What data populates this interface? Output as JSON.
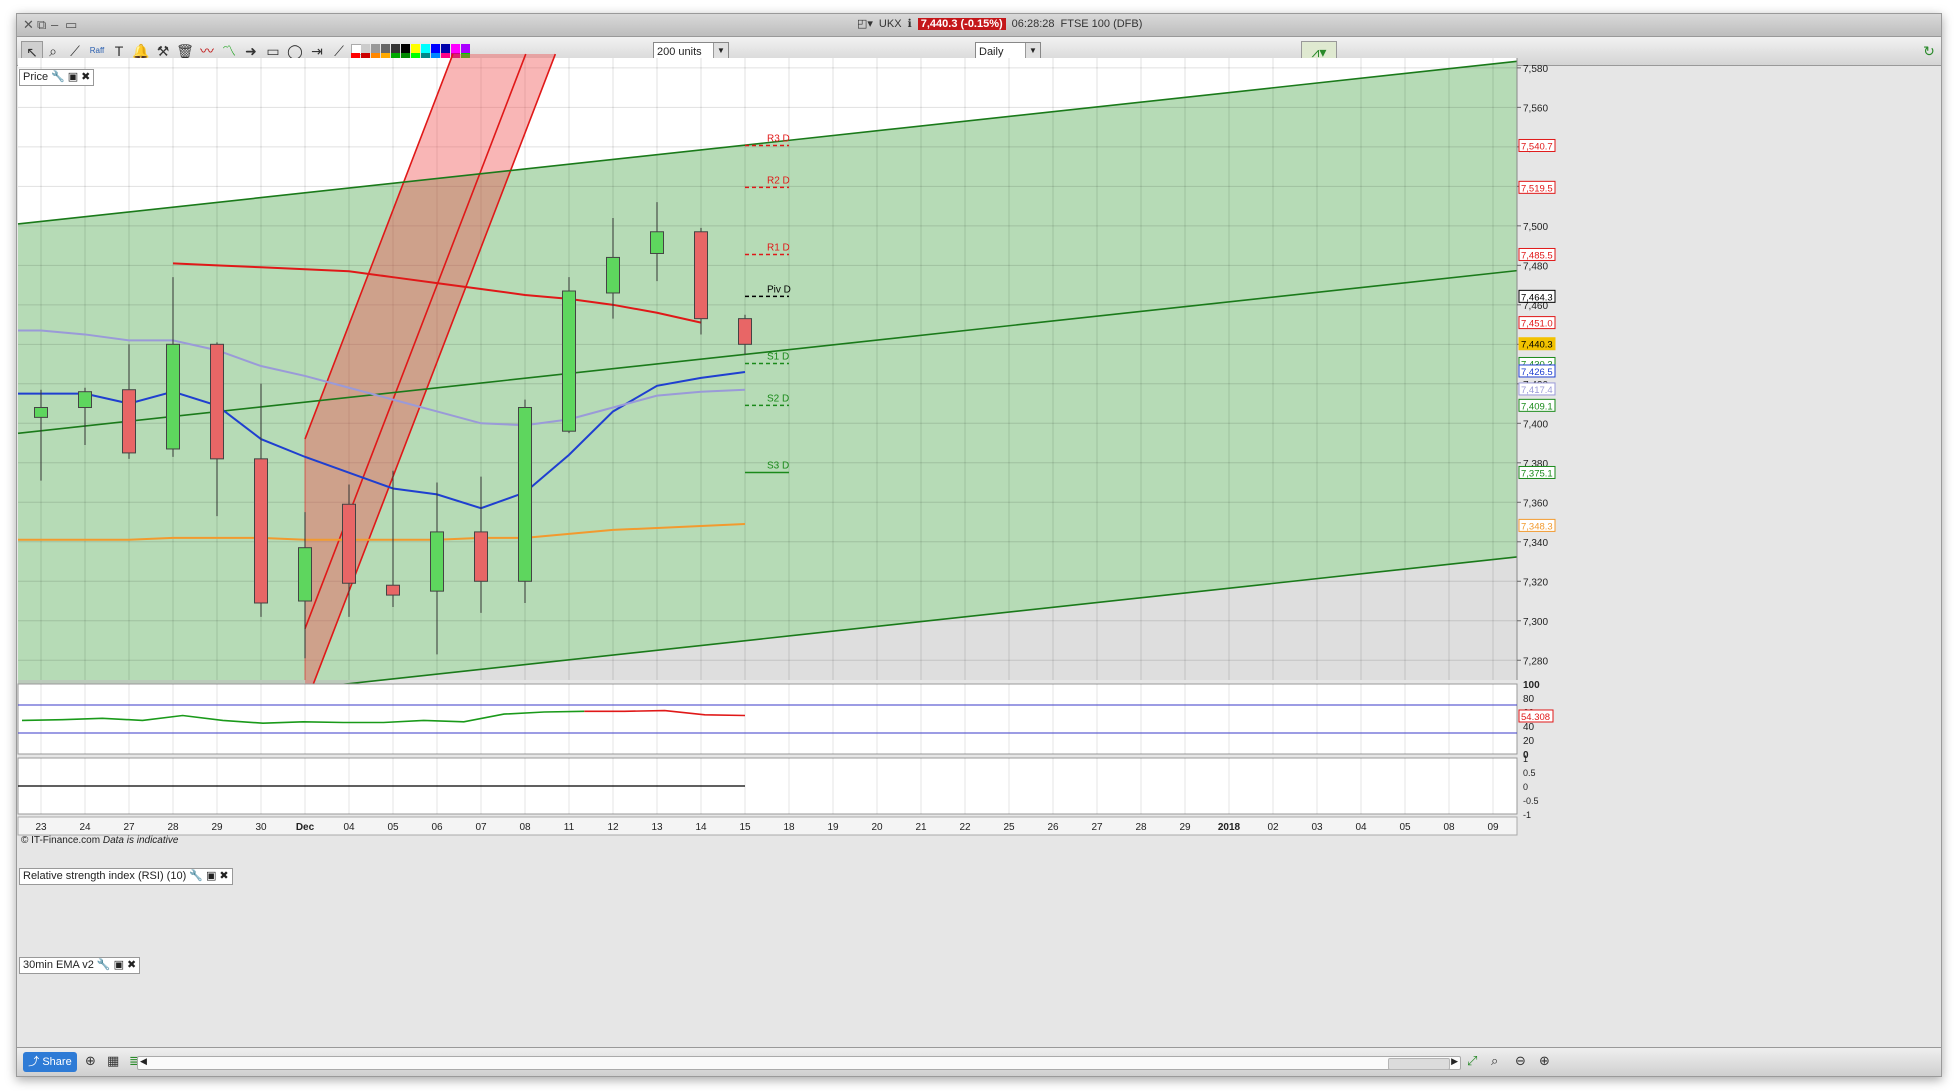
{
  "window": {
    "instrument_code": "UKX",
    "price_badge": "7,440.3 (-0.15%)",
    "time": "06:28:28",
    "instrument_name": "FTSE 100 (DFB)"
  },
  "toolbar": {
    "units_select": "200 units",
    "period_select": "Daily",
    "raff_label": "Raff"
  },
  "panels": {
    "price_label": "Price",
    "rsi_label": "Relative strength index (RSI) (10)",
    "ema_label": "30min EMA v2",
    "watermark_brand": "© IT-Finance.com",
    "watermark_note": "Data is indicative"
  },
  "footer": {
    "share_label": "Share"
  },
  "colors": {
    "up_candle": "#5ed65e",
    "down_candle": "#e86666",
    "channel_green": "#1a7a1a",
    "channel_red": "#e01818",
    "ma_blue": "#1f3fd0",
    "ma_light": "#9a9ad8",
    "ma_orange": "#f29a2e"
  },
  "chart_data": {
    "type": "candlestick",
    "x_tick_labels": [
      "23",
      "24",
      "27",
      "28",
      "29",
      "30",
      "Dec",
      "04",
      "05",
      "06",
      "07",
      "08",
      "11",
      "12",
      "13",
      "14",
      "15",
      "18",
      "19",
      "20",
      "21",
      "22",
      "25",
      "26",
      "27",
      "28",
      "29",
      "2018",
      "02",
      "03",
      "04",
      "05",
      "08",
      "09"
    ],
    "y_axis": {
      "min": 7270,
      "max": 7585,
      "tick_labels": [
        "7,580",
        "7,560",
        "7,540",
        "7,520",
        "7,500",
        "7,480",
        "7,460",
        "7,440",
        "7,420",
        "7,400",
        "7,380",
        "7,360",
        "7,340",
        "7,320",
        "7,300",
        "7,280"
      ],
      "tick_values": [
        7580,
        7560,
        7540,
        7520,
        7500,
        7480,
        7460,
        7440,
        7420,
        7400,
        7380,
        7360,
        7340,
        7320,
        7300,
        7280
      ]
    },
    "candles": [
      {
        "date": "23",
        "open": 7403,
        "high": 7417,
        "low": 7371,
        "close": 7408
      },
      {
        "date": "24",
        "open": 7408,
        "high": 7418,
        "low": 7389,
        "close": 7416
      },
      {
        "date": "27",
        "open": 7417,
        "high": 7440,
        "low": 7382,
        "close": 7385
      },
      {
        "date": "28",
        "open": 7387,
        "high": 7474,
        "low": 7383,
        "close": 7440
      },
      {
        "date": "29",
        "open": 7440,
        "high": 7441,
        "low": 7353,
        "close": 7382
      },
      {
        "date": "30",
        "open": 7382,
        "high": 7420,
        "low": 7302,
        "close": 7309
      },
      {
        "date": "Dec",
        "open": 7310,
        "high": 7355,
        "low": 7281,
        "close": 7337
      },
      {
        "date": "04",
        "open": 7359,
        "high": 7369,
        "low": 7302,
        "close": 7319
      },
      {
        "date": "05",
        "open": 7318,
        "high": 7376,
        "low": 7307,
        "close": 7313
      },
      {
        "date": "06",
        "open": 7315,
        "high": 7370,
        "low": 7283,
        "close": 7345
      },
      {
        "date": "07",
        "open": 7345,
        "high": 7373,
        "low": 7304,
        "close": 7320
      },
      {
        "date": "08",
        "open": 7320,
        "high": 7412,
        "low": 7309,
        "close": 7408
      },
      {
        "date": "11",
        "open": 7396,
        "high": 7474,
        "low": 7395,
        "close": 7467
      },
      {
        "date": "12",
        "open": 7466,
        "high": 7504,
        "low": 7453,
        "close": 7484
      },
      {
        "date": "13",
        "open": 7486,
        "high": 7512,
        "low": 7472,
        "close": 7497
      },
      {
        "date": "14",
        "open": 7497,
        "high": 7499,
        "low": 7445,
        "close": 7453
      },
      {
        "date": "15",
        "open": 7453,
        "high": 7455,
        "low": 7435,
        "close": 7440
      }
    ],
    "moving_averages": [
      {
        "color": "blue",
        "values": [
          7415,
          7415,
          7410,
          7416,
          7409,
          7392,
          7383,
          7375,
          7367,
          7364,
          7357,
          7365,
          7384,
          7406,
          7419,
          7423,
          7426
        ]
      },
      {
        "color": "lavender",
        "values": [
          7447,
          7445,
          7442,
          7442,
          7437,
          7429,
          7424,
          7418,
          7412,
          7406,
          7400,
          7399,
          7402,
          7408,
          7414,
          7416,
          7417
        ]
      },
      {
        "color": "red",
        "start_date": "28",
        "values": [
          7481,
          7480,
          7479,
          7478,
          7477,
          7474,
          7471,
          7468,
          7465,
          7463,
          7460,
          7456,
          7451
        ]
      },
      {
        "color": "orange",
        "values": [
          7341,
          7341,
          7341,
          7342,
          7342,
          7342,
          7341,
          7341,
          7341,
          7341,
          7342,
          7342,
          7344,
          7346,
          7347,
          7348,
          7349
        ]
      }
    ],
    "right_axis_badges": [
      {
        "label": "7,540.7",
        "value": 7540.7,
        "color": "#e01818"
      },
      {
        "label": "7,519.5",
        "value": 7519.5,
        "color": "#e01818"
      },
      {
        "label": "7,485.5",
        "value": 7485.5,
        "color": "#e01818"
      },
      {
        "label": "7,464.3",
        "value": 7464.3,
        "color": "#000000"
      },
      {
        "label": "7,451.0",
        "value": 7451.0,
        "color": "#e01818"
      },
      {
        "label": "7,440.3",
        "value": 7440.3,
        "color": "#f2c200"
      },
      {
        "label": "7,430.3",
        "value": 7430.3,
        "color": "#1a8a1a"
      },
      {
        "label": "7,426.5",
        "value": 7426.5,
        "color": "#1f3fd0"
      },
      {
        "label": "7,417.4",
        "value": 7417.4,
        "color": "#9a9ad8"
      },
      {
        "label": "7,409.1",
        "value": 7409.1,
        "color": "#1a8a1a"
      },
      {
        "label": "7,375.1",
        "value": 7375.1,
        "color": "#1a8a1a"
      },
      {
        "label": "7,348.3",
        "value": 7348.3,
        "color": "#f29a2e"
      }
    ],
    "pivot_levels": [
      {
        "label": "R3 D",
        "value": 7540.7,
        "color": "#e01818"
      },
      {
        "label": "R2 D",
        "value": 7519.5,
        "color": "#e01818"
      },
      {
        "label": "R1 D",
        "value": 7485.5,
        "color": "#e01818"
      },
      {
        "label": "Piv D",
        "value": 7464.3,
        "color": "#000000"
      },
      {
        "label": "S1 D",
        "value": 7430.3,
        "color": "#1a8a1a"
      },
      {
        "label": "S2 D",
        "value": 7409.1,
        "color": "#1a8a1a"
      },
      {
        "label": "S3 D",
        "value": 7375.1,
        "color": "#1a8a1a"
      }
    ],
    "rsi": {
      "y_tick_labels": [
        "100",
        "80",
        "60",
        "40",
        "20",
        "0"
      ],
      "y_tick_values": [
        100,
        80,
        60,
        40,
        20,
        0
      ],
      "upper_band": 70,
      "lower_band": 30,
      "last_label": "54.308",
      "values": [
        48,
        49,
        51,
        48,
        55,
        48,
        44,
        46,
        45,
        45,
        48,
        46,
        57,
        60,
        61,
        61,
        62,
        56,
        55
      ]
    },
    "ema_panel": {
      "y_tick_labels": [
        "1",
        "0.5",
        "0",
        "-0.5",
        "-1"
      ],
      "y_tick_values": [
        1,
        0.5,
        0,
        -0.5,
        -1
      ],
      "value": 0
    }
  }
}
